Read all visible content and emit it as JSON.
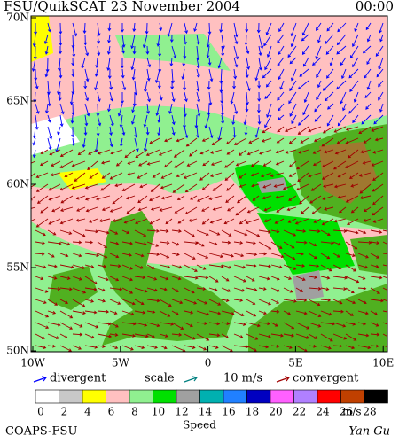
{
  "header": {
    "title": "FSU/QuikSCAT 23 November 2004",
    "time": "00:00"
  },
  "lat_labels": [
    "70N",
    "65N",
    "60N",
    "55N",
    "50N"
  ],
  "lon_labels": [
    "10W",
    "5W",
    "0",
    "5E",
    "10E"
  ],
  "legend": {
    "divergent": "divergent",
    "scale": "scale",
    "scale_value": "10 m/s",
    "convergent": "convergent",
    "divergent_color": "#0000ff",
    "convergent_color": "#a00000"
  },
  "colorbar": {
    "colors": [
      "#ffffff",
      "#c8c8c8",
      "#ffff00",
      "#ffc0c0",
      "#90f090",
      "#00e000",
      "#a0a0a0",
      "#00b0b0",
      "#2080ff",
      "#0000c0",
      "#ff60ff",
      "#b080ff",
      "#ff0000",
      "#c04000",
      "#000000"
    ],
    "labels": [
      0,
      2,
      4,
      6,
      8,
      10,
      12,
      14,
      16,
      18,
      20,
      22,
      24,
      26,
      28
    ],
    "unit": "m/s",
    "title": "Speed"
  },
  "footer": {
    "left": "COAPS-FSU",
    "right": "Yan Gu"
  }
}
